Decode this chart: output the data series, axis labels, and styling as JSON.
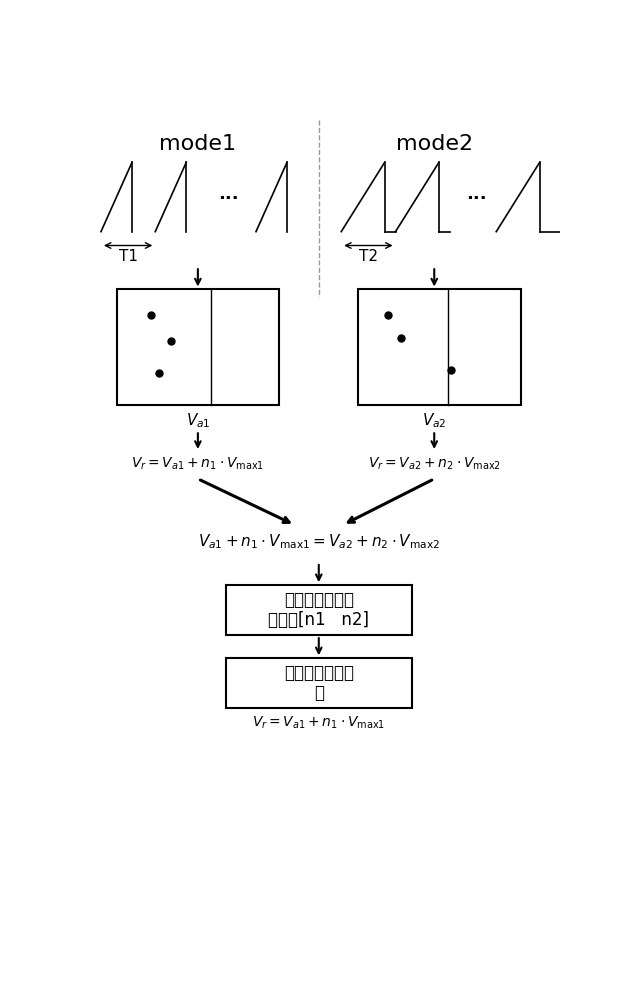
{
  "bg_color": "#ffffff",
  "mode1_label": "mode1",
  "mode2_label": "mode2",
  "T1_label": "T1",
  "T2_label": "T2",
  "Va1_label": "$V_{a1}$",
  "Va2_label": "$V_{a2}$",
  "eq1_left": "$V_r =V_{a1}+n_1 \\cdot V_{\\max 1}$",
  "eq1_right": "$V_r =V_{a2}+n_2 \\cdot V_{\\max 2}$",
  "eq_combined": "$V_{a1}+n_1 \\cdot V_{\\max 1}=V_{a2}+n_2 \\cdot V_{\\max 2}$",
  "box1_line1": "假设验证法求解",
  "box1_line2": "唯一解[n1   n2]",
  "box2_line1": "获得目标真实速",
  "box2_line2": "度",
  "eq_final": "$V_r =V_{a1}+n_1 \\cdot V_{\\max 1}$"
}
